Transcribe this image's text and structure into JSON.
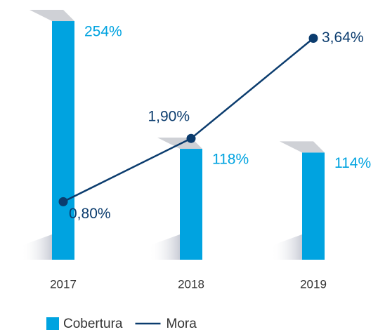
{
  "chart_data": {
    "type": "bar-line",
    "categories": [
      "2017",
      "2018",
      "2019"
    ],
    "series": [
      {
        "name": "Cobertura",
        "type": "bar",
        "color": "#00a3e0",
        "values": [
          254,
          118,
          114
        ],
        "value_labels": [
          "254%",
          "118%",
          "114%"
        ]
      },
      {
        "name": "Mora",
        "type": "line",
        "axis": "y2",
        "color": "#0b3c6e",
        "values": [
          0.8,
          1.9,
          3.64
        ],
        "value_labels": [
          "0,80%",
          "1,90%",
          "3,64%"
        ]
      }
    ],
    "ylim": [
      0,
      260
    ],
    "y2lim": [
      0,
      4
    ],
    "grid": false
  }
}
